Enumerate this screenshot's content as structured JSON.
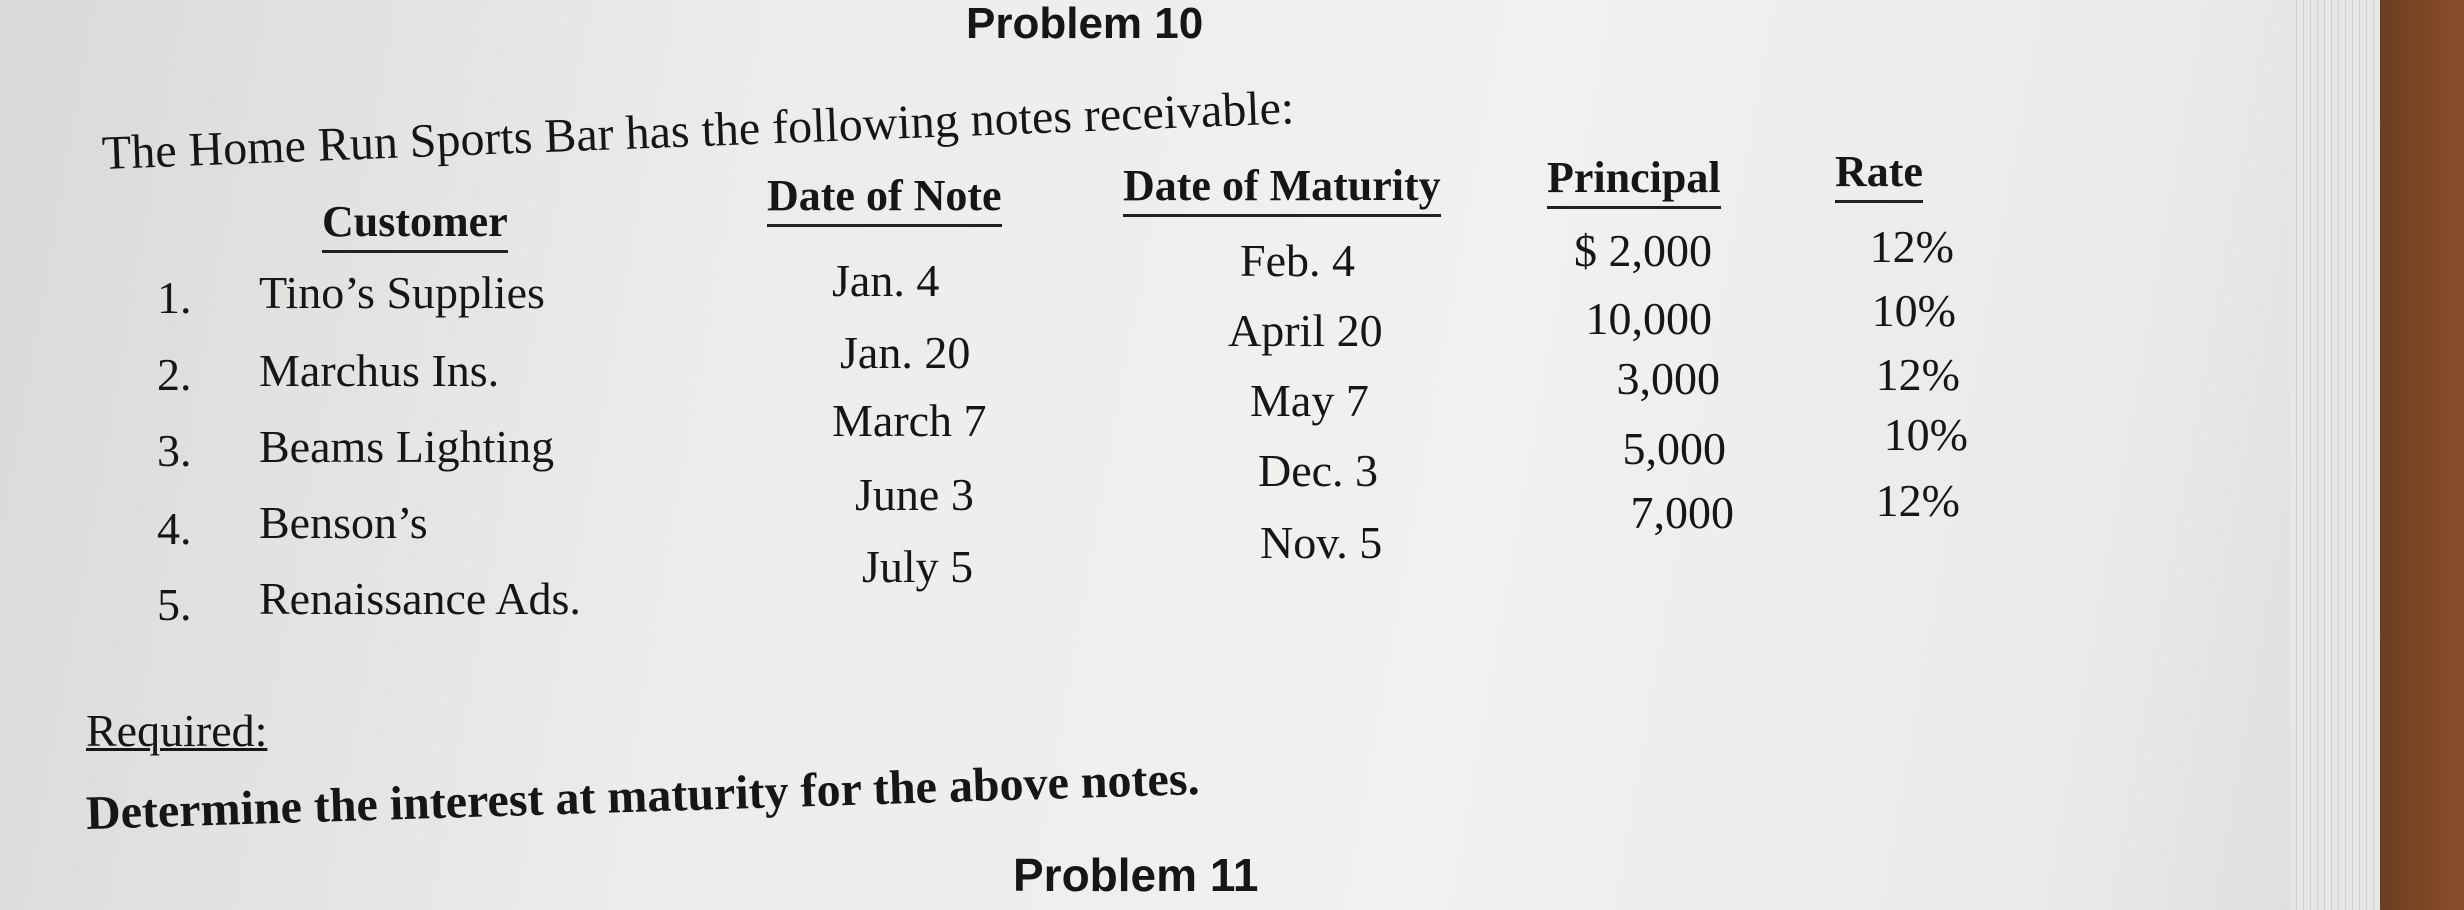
{
  "problem_title": "Problem 10",
  "intro": "The Home Run Sports Bar has the following notes receivable:",
  "table": {
    "headers": [
      "Customer",
      "Date of Note",
      "Date of Maturity",
      "Principal",
      "Rate"
    ],
    "rows": [
      {
        "num": "1.",
        "customer": "Tino’s Supplies",
        "date_of_note": "Jan. 4",
        "date_of_maturity": "Feb. 4",
        "principal": "$ 2,000",
        "rate": "12%"
      },
      {
        "num": "2.",
        "customer": "Marchus Ins.",
        "date_of_note": "Jan. 20",
        "date_of_maturity": "April 20",
        "principal": "10,000",
        "rate": "10%"
      },
      {
        "num": "3.",
        "customer": "Beams Lighting",
        "date_of_note": "March 7",
        "date_of_maturity": "May 7",
        "principal": "3,000",
        "rate": "12%"
      },
      {
        "num": "4.",
        "customer": "Benson’s",
        "date_of_note": "June 3",
        "date_of_maturity": "Dec. 3",
        "principal": "5,000",
        "rate": "10%"
      },
      {
        "num": "5.",
        "customer": "Renaissance Ads.",
        "date_of_note": "July 5",
        "date_of_maturity": "Nov. 5",
        "principal": "7,000",
        "rate": "12%"
      }
    ]
  },
  "required_label": "Required:",
  "required_text": "Determine the interest at maturity for the above notes.",
  "next_problem_title": "Problem 11"
}
